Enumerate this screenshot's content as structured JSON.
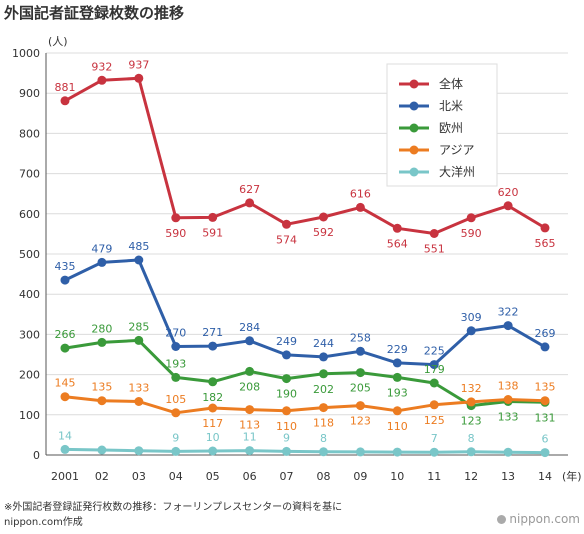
{
  "title": "外国記者証登録枚数の推移",
  "footnote": {
    "line1": "※外国記者登録証発行枚数の推移：フォーリンプレスセンターの資料を基に",
    "line2": "nippon.com作成"
  },
  "brand": "nippon.com",
  "chart_data": {
    "type": "line",
    "ylabel": "(人)",
    "xlabel": "(年)",
    "ylim": [
      0,
      1000
    ],
    "yticks": [
      0,
      100,
      200,
      300,
      400,
      500,
      600,
      700,
      800,
      900,
      1000
    ],
    "categories": [
      "2001",
      "02",
      "03",
      "04",
      "05",
      "06",
      "07",
      "08",
      "09",
      "10",
      "11",
      "12",
      "13",
      "14"
    ],
    "grid": true,
    "legend": "top-right",
    "series": [
      {
        "name": "全体",
        "color": "#c8333f",
        "values": [
          881,
          932,
          937,
          590,
          591,
          627,
          574,
          592,
          616,
          564,
          551,
          590,
          620,
          565
        ]
      },
      {
        "name": "北米",
        "color": "#2f5fa8",
        "values": [
          435,
          479,
          485,
          270,
          271,
          284,
          249,
          244,
          258,
          229,
          225,
          309,
          322,
          269
        ]
      },
      {
        "name": "欧州",
        "color": "#3a9a3a",
        "values": [
          266,
          280,
          285,
          193,
          182,
          208,
          190,
          202,
          205,
          193,
          179,
          123,
          133,
          131
        ]
      },
      {
        "name": "アジア",
        "color": "#ec7c21",
        "values": [
          145,
          135,
          133,
          105,
          117,
          113,
          110,
          118,
          123,
          110,
          125,
          132,
          138,
          135
        ]
      },
      {
        "name": "大洋州",
        "color": "#79c6c8",
        "values": [
          14,
          null,
          null,
          9,
          10,
          11,
          9,
          8,
          null,
          null,
          7,
          8,
          null,
          6
        ]
      }
    ]
  }
}
